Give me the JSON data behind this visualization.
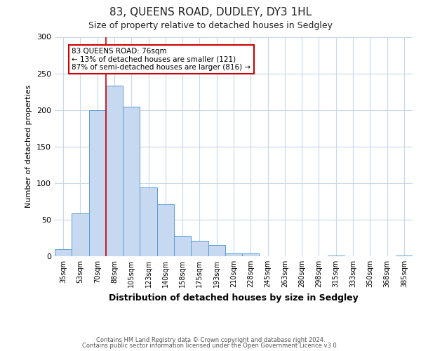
{
  "title": "83, QUEENS ROAD, DUDLEY, DY3 1HL",
  "subtitle": "Size of property relative to detached houses in Sedgley",
  "xlabel": "Distribution of detached houses by size in Sedgley",
  "ylabel": "Number of detached properties",
  "bar_labels": [
    "35sqm",
    "53sqm",
    "70sqm",
    "88sqm",
    "105sqm",
    "123sqm",
    "140sqm",
    "158sqm",
    "175sqm",
    "193sqm",
    "210sqm",
    "228sqm",
    "245sqm",
    "263sqm",
    "280sqm",
    "298sqm",
    "315sqm",
    "333sqm",
    "350sqm",
    "368sqm",
    "385sqm"
  ],
  "bar_values": [
    10,
    59,
    200,
    233,
    204,
    94,
    71,
    28,
    21,
    15,
    4,
    4,
    0,
    0,
    0,
    0,
    1,
    0,
    0,
    0,
    1
  ],
  "bar_color": "#c6d9f0",
  "bar_edge_color": "#5b9bd5",
  "vline_x_pos": 2.5,
  "vline_color": "#cc0000",
  "ylim": [
    0,
    300
  ],
  "yticks": [
    0,
    50,
    100,
    150,
    200,
    250,
    300
  ],
  "annotation_text": "83 QUEENS ROAD: 76sqm\n← 13% of detached houses are smaller (121)\n87% of semi-detached houses are larger (816) →",
  "annotation_box_color": "#ffffff",
  "annotation_box_edge": "#cc0000",
  "footer_line1": "Contains HM Land Registry data © Crown copyright and database right 2024.",
  "footer_line2": "Contains public sector information licensed under the Open Government Licence v3.0.",
  "bg_color": "#ffffff",
  "grid_color": "#c8d8e8",
  "title_fontsize": 11,
  "subtitle_fontsize": 9,
  "footer_fontsize": 6
}
